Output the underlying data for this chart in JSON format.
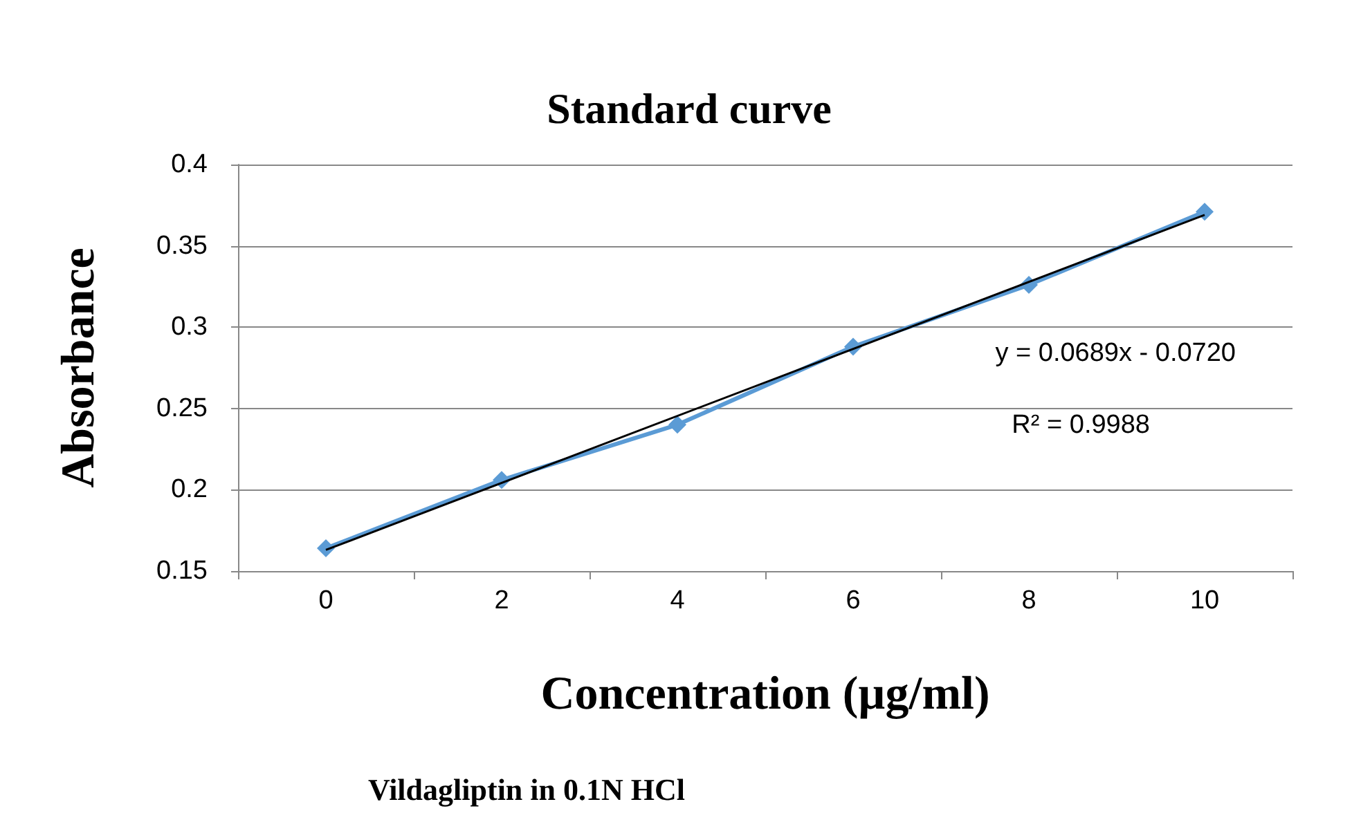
{
  "chart_data": {
    "type": "line",
    "title": "Standard curve",
    "xlabel": "Concentration (µg/ml)",
    "ylabel": "Absorbance",
    "categories": [
      "0",
      "2",
      "4",
      "6",
      "8",
      "10"
    ],
    "series": [
      {
        "color": "#5b9bd5",
        "marker": "diamond",
        "values": [
          0.164,
          0.206,
          0.24,
          0.288,
          0.326,
          0.371
        ]
      },
      {
        "color": "#000000",
        "marker": "none",
        "x": [
          "0",
          "10"
        ],
        "values": [
          0.163,
          0.369
        ]
      }
    ],
    "ylim": [
      0.15,
      0.4
    ],
    "yticks": [
      0.15,
      0.2,
      0.25,
      0.3,
      0.35,
      0.4
    ],
    "grid": "y",
    "annotations": [
      "y = 0.0689x - 0.0720",
      "R² = 0.9988",
      "Vildagliptin in 0.1N HCl"
    ]
  }
}
